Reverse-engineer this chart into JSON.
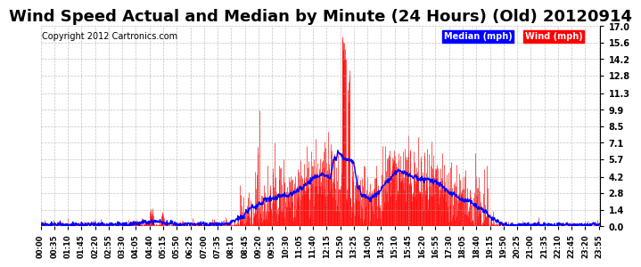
{
  "title": "Wind Speed Actual and Median by Minute (24 Hours) (Old) 20120914",
  "copyright": "Copyright 2012 Cartronics.com",
  "legend_median_label": "Median (mph)",
  "legend_wind_label": "Wind (mph)",
  "legend_median_color": "#0000ff",
  "legend_wind_color": "#ff0000",
  "legend_median_bg": "#0000ff",
  "legend_wind_bg": "#ff0000",
  "ylabel_right_ticks": [
    0.0,
    1.4,
    2.8,
    4.2,
    5.7,
    7.1,
    8.5,
    9.9,
    11.3,
    12.8,
    14.2,
    15.6,
    17.0
  ],
  "ylim": [
    0.0,
    17.0
  ],
  "background_color": "#ffffff",
  "plot_bg_color": "#ffffff",
  "grid_color": "#aaaaaa",
  "title_fontsize": 13,
  "wind_color": "#ff0000",
  "median_color": "#0000ff",
  "baseline_color": "#ff0000",
  "xtick_interval_minutes": 35,
  "total_minutes": 1440
}
